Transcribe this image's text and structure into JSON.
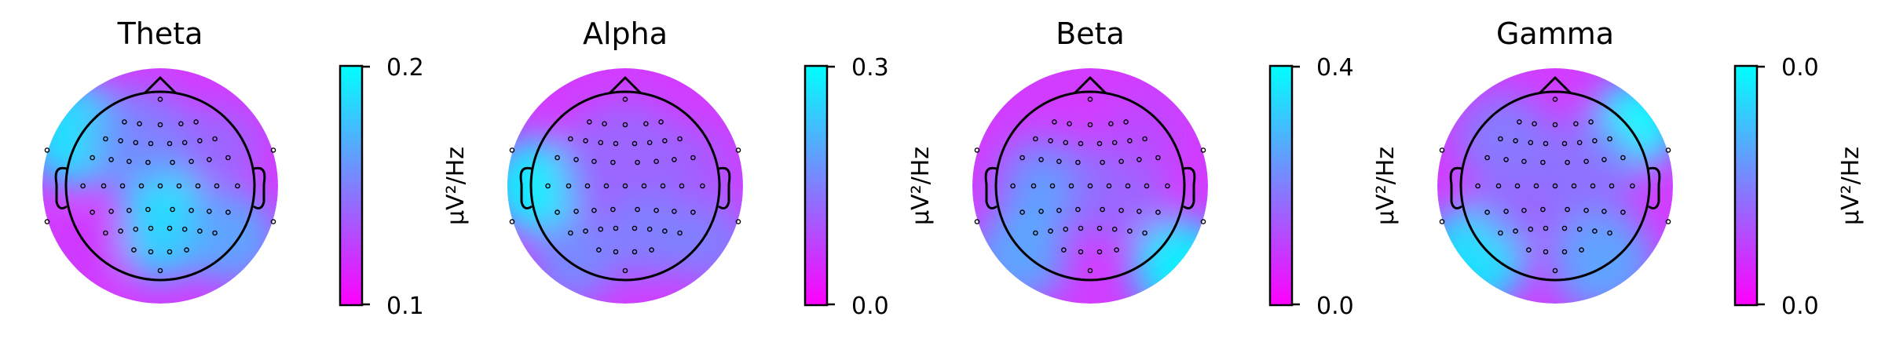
{
  "chart_data": [
    {
      "type": "heatmap",
      "title": "Theta",
      "colorbar": {
        "label": "µV²/Hz",
        "tick_top": "0.2",
        "tick_bottom": "0.1",
        "vmax": 0.2,
        "vmin": 0.1
      },
      "colormap": [
        "#ff00ff",
        "#00ffff"
      ]
    },
    {
      "type": "heatmap",
      "title": "Alpha",
      "colorbar": {
        "label": "µV²/Hz",
        "tick_top": "0.3",
        "tick_bottom": "0.0",
        "vmax": 0.3,
        "vmin": 0.0
      },
      "colormap": [
        "#ff00ff",
        "#00ffff"
      ]
    },
    {
      "type": "heatmap",
      "title": "Beta",
      "colorbar": {
        "label": "µV²/Hz",
        "tick_top": "0.4",
        "tick_bottom": "0.0",
        "vmax": 0.4,
        "vmin": 0.0
      },
      "colormap": [
        "#ff00ff",
        "#00ffff"
      ]
    },
    {
      "type": "heatmap",
      "title": "Gamma",
      "colorbar": {
        "label": "µV²/Hz",
        "tick_top": "0.0",
        "tick_bottom": "0.0",
        "vmax": 0.0,
        "vmin": 0.0
      },
      "colormap": [
        "#ff00ff",
        "#00ffff"
      ]
    }
  ]
}
